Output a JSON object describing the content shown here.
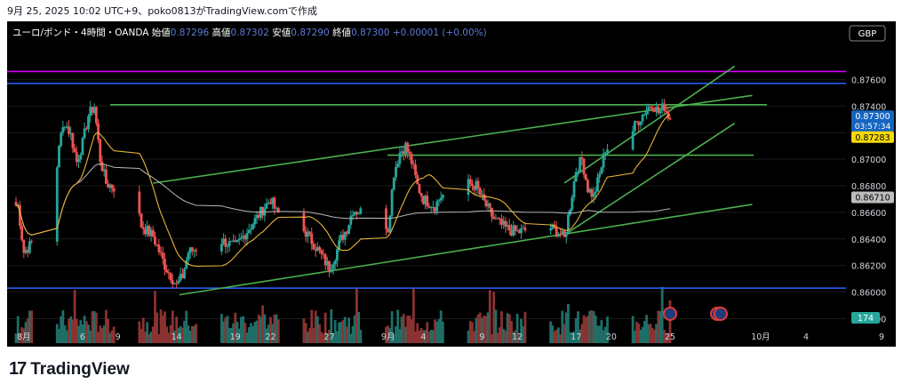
{
  "caption": "9月 25, 2025 10:02 UTC+9、poko0813がTradingView.comで作成",
  "header": {
    "symbol": "ユーロ/ポンド・4時間・OANDA",
    "open_label": "始値",
    "open_value": "0.87296",
    "high_label": "高値",
    "high_value": "0.87302",
    "low_label": "安値",
    "low_value": "0.87290",
    "close_label": "終値",
    "close_value": "0.87300",
    "change": "+0.00001 (+0.00%)"
  },
  "currency_button": "GBP",
  "brand": "TradingView",
  "colors": {
    "up": "#26a69a",
    "down": "#ef5350",
    "ma_fast": "#e8b43a",
    "ma_slow": "#b8b8b8",
    "trend": "#4caf50",
    "hline": "#2962ff",
    "magenta": "#d500f9"
  },
  "chart_data": {
    "type": "candlestick",
    "y_axis": {
      "range": [
        0.8575,
        0.8785
      ],
      "ticks": [
        "0.87600",
        "0.87400",
        "0.87200",
        "0.87000",
        "0.86800",
        "0.86600",
        "0.86400",
        "0.86200",
        "0.86000",
        "0.85800"
      ]
    },
    "x_axis": {
      "ticks": [
        "8月",
        "6",
        "9",
        "14",
        "19",
        "22",
        "27",
        "9月",
        "4",
        "9",
        "12",
        "17",
        "20",
        "25",
        "10月",
        "4",
        "9"
      ]
    },
    "price_labels": {
      "last": {
        "value": "0.87300",
        "countdown": "03:57:34"
      },
      "ma_fast": "0.87283",
      "ma_slow": "0.86710",
      "volume": "174"
    },
    "anchors": [
      [
        "2025-07-31 12:00",
        0.8665
      ],
      [
        "2025-08-01 00:00",
        0.863
      ],
      [
        "2025-08-01 12:00",
        0.8635
      ],
      [
        "2025-08-03 12:00",
        0.866
      ],
      [
        "2025-08-04 00:00",
        0.8712
      ],
      [
        "2025-08-04 12:00",
        0.8728
      ],
      [
        "2025-08-05 00:00",
        0.8718
      ],
      [
        "2025-08-05 12:00",
        0.8698
      ],
      [
        "2025-08-06 00:00",
        0.8712
      ],
      [
        "2025-08-06 12:00",
        0.8733
      ],
      [
        "2025-08-07 00:00",
        0.874
      ],
      [
        "2025-08-07 12:00",
        0.87
      ],
      [
        "2025-08-08 00:00",
        0.8682
      ],
      [
        "2025-08-10 12:00",
        0.867
      ],
      [
        "2025-08-11 00:00",
        0.865
      ],
      [
        "2025-08-12 00:00",
        0.8642
      ],
      [
        "2025-08-13 00:00",
        0.862
      ],
      [
        "2025-08-14 00:00",
        0.8605
      ],
      [
        "2025-08-14 12:00",
        0.8612
      ],
      [
        "2025-08-15 00:00",
        0.863
      ],
      [
        "2025-08-17 12:00",
        0.864
      ],
      [
        "2025-08-19 00:00",
        0.8634
      ],
      [
        "2025-08-20 00:00",
        0.8646
      ],
      [
        "2025-08-21 00:00",
        0.8658
      ],
      [
        "2025-08-22 00:00",
        0.867
      ],
      [
        "2025-08-22 12:00",
        0.866
      ],
      [
        "2025-08-25 00:00",
        0.8645
      ],
      [
        "2025-08-26 00:00",
        0.8632
      ],
      [
        "2025-08-27 00:00",
        0.8618
      ],
      [
        "2025-08-27 12:00",
        0.8628
      ],
      [
        "2025-08-28 00:00",
        0.864
      ],
      [
        "2025-08-28 12:00",
        0.8648
      ],
      [
        "2025-08-29 00:00",
        0.8662
      ],
      [
        "2025-08-31 12:00",
        0.8656
      ],
      [
        "2025-09-01 00:00",
        0.8648
      ],
      [
        "2025-09-01 12:00",
        0.869
      ],
      [
        "2025-09-02 00:00",
        0.8705
      ],
      [
        "2025-09-02 12:00",
        0.871
      ],
      [
        "2025-09-03 00:00",
        0.8698
      ],
      [
        "2025-09-03 12:00",
        0.868
      ],
      [
        "2025-09-04 00:00",
        0.867
      ],
      [
        "2025-09-05 00:00",
        0.8665
      ],
      [
        "2025-09-05 12:00",
        0.8672
      ],
      [
        "2025-09-07 12:00",
        0.8682
      ],
      [
        "2025-09-08 12:00",
        0.868
      ],
      [
        "2025-09-09 00:00",
        0.867
      ],
      [
        "2025-09-10 00:00",
        0.8655
      ],
      [
        "2025-09-11 00:00",
        0.8648
      ],
      [
        "2025-09-12 00:00",
        0.8645
      ],
      [
        "2025-09-14 12:00",
        0.865
      ],
      [
        "2025-09-15 12:00",
        0.8645
      ],
      [
        "2025-09-16 00:00",
        0.864
      ],
      [
        "2025-09-16 12:00",
        0.8665
      ],
      [
        "2025-09-17 00:00",
        0.8692
      ],
      [
        "2025-09-17 12:00",
        0.87
      ],
      [
        "2025-09-18 00:00",
        0.8678
      ],
      [
        "2025-09-18 12:00",
        0.8672
      ],
      [
        "2025-09-19 00:00",
        0.8688
      ],
      [
        "2025-09-19 12:00",
        0.8708
      ],
      [
        "2025-09-21 12:00",
        0.8716
      ],
      [
        "2025-09-22 00:00",
        0.8725
      ],
      [
        "2025-09-23 00:00",
        0.8738
      ],
      [
        "2025-09-23 12:00",
        0.8742
      ],
      [
        "2025-09-24 00:00",
        0.8735
      ],
      [
        "2025-09-24 12:00",
        0.874
      ],
      [
        "2025-09-25 00:00",
        0.873
      ]
    ],
    "levels": [
      {
        "price": 0.8766,
        "color": "#d500f9"
      },
      {
        "price": 0.8757,
        "color": "#2962ff"
      },
      {
        "price": 0.8741,
        "color": "#4caf50"
      },
      {
        "price": 0.8703,
        "color": "#4caf50"
      },
      {
        "price": 0.8603,
        "color": "#2962ff"
      }
    ]
  }
}
